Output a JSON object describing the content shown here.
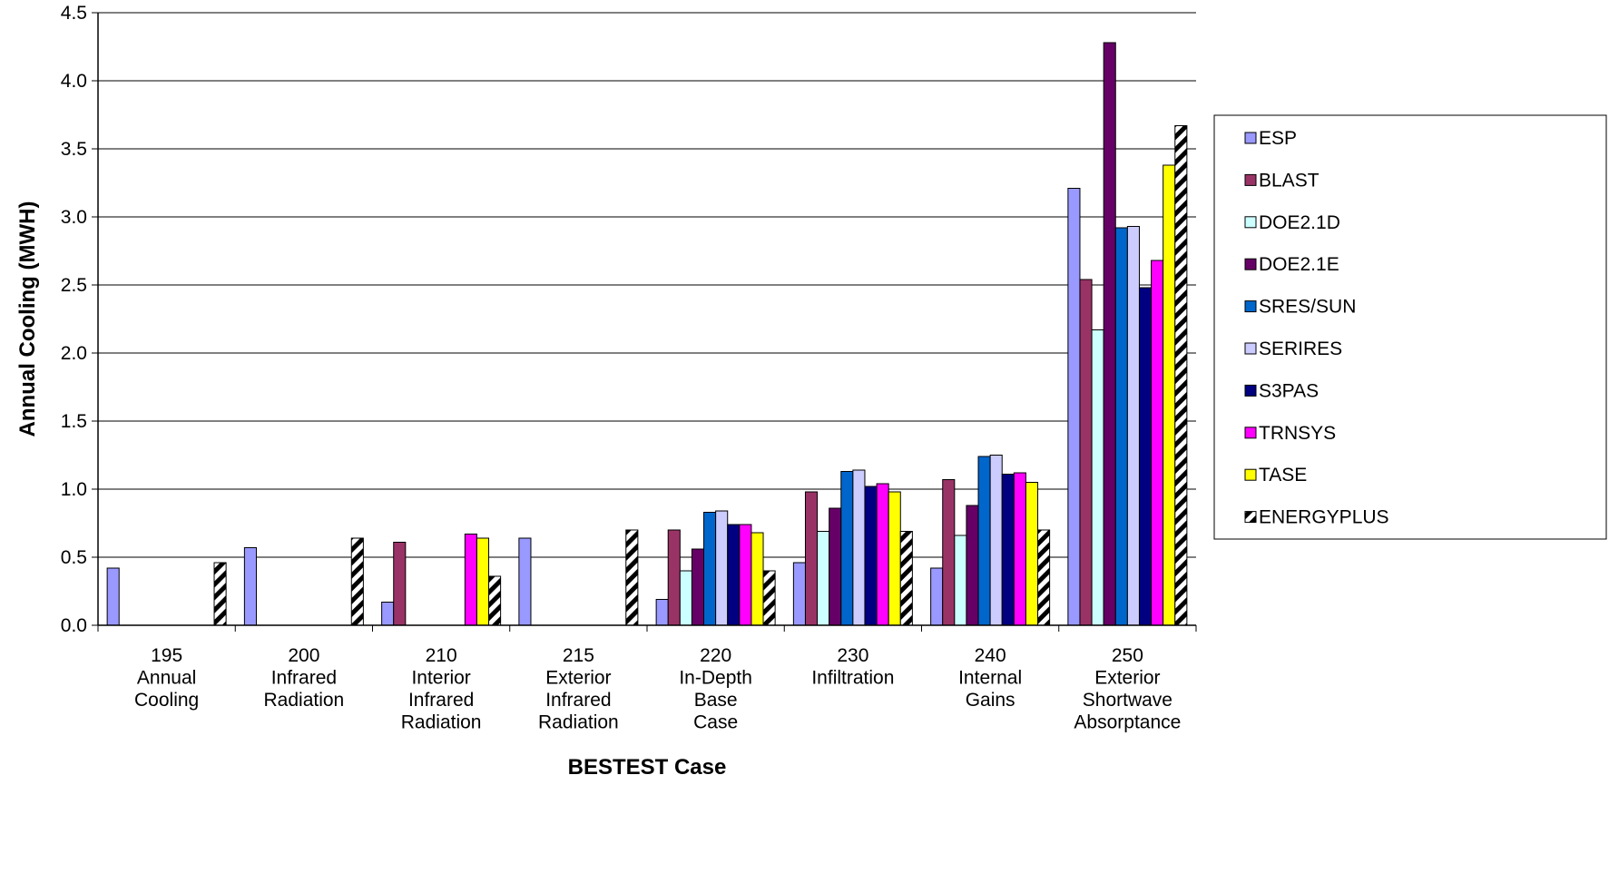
{
  "chart_data": {
    "type": "bar",
    "xlabel": "BESTEST Case",
    "ylabel": "Annual Cooling (MWH)",
    "ylim": [
      0,
      4.5
    ],
    "yticks": [
      "0.0",
      "0.5",
      "1.0",
      "1.5",
      "2.0",
      "2.5",
      "3.0",
      "3.5",
      "4.0",
      "4.5"
    ],
    "grid": "horizontal",
    "legend": "right",
    "categories": [
      [
        "195",
        "Annual",
        "Cooling"
      ],
      [
        "200",
        "Infrared",
        "Radiation"
      ],
      [
        "210",
        "Interior",
        "Infrared",
        "Radiation"
      ],
      [
        "215",
        "Exterior",
        "Infrared",
        "Radiation"
      ],
      [
        "220",
        "In-Depth",
        "Base",
        "Case"
      ],
      [
        "230",
        "Infiltration"
      ],
      [
        "240",
        "Internal",
        "Gains"
      ],
      [
        "250",
        "Exterior",
        "Shortwave",
        "Absorptance"
      ]
    ],
    "series": [
      {
        "name": "ESP",
        "color": "#9999ff",
        "values": [
          0.42,
          0.57,
          0.17,
          0.64,
          0.19,
          0.46,
          0.42,
          3.21
        ]
      },
      {
        "name": "BLAST",
        "color": "#993366",
        "values": [
          null,
          null,
          0.61,
          null,
          0.7,
          0.98,
          1.07,
          2.54
        ]
      },
      {
        "name": "DOE2.1D",
        "color": "#ccffff",
        "values": [
          null,
          null,
          null,
          null,
          0.4,
          0.69,
          0.66,
          2.17
        ]
      },
      {
        "name": "DOE2.1E",
        "color": "#660066",
        "values": [
          null,
          null,
          null,
          null,
          0.56,
          0.86,
          0.88,
          4.28
        ]
      },
      {
        "name": "SRES/SUN",
        "color": "#0066cc",
        "values": [
          null,
          null,
          null,
          null,
          0.83,
          1.13,
          1.24,
          2.92
        ]
      },
      {
        "name": "SERIRES",
        "color": "#ccccff",
        "values": [
          null,
          null,
          null,
          null,
          0.84,
          1.14,
          1.25,
          2.93
        ]
      },
      {
        "name": "S3PAS",
        "color": "#000080",
        "values": [
          null,
          null,
          null,
          null,
          0.74,
          1.02,
          1.11,
          2.48
        ]
      },
      {
        "name": "TRNSYS",
        "color": "#ff00ff",
        "values": [
          null,
          null,
          0.67,
          null,
          0.74,
          1.04,
          1.12,
          2.68
        ]
      },
      {
        "name": "TASE",
        "color": "#ffff00",
        "values": [
          null,
          null,
          0.64,
          null,
          0.68,
          0.98,
          1.05,
          3.38
        ]
      },
      {
        "name": "ENERGYPLUS",
        "color": "hatch",
        "values": [
          0.46,
          0.64,
          0.36,
          0.7,
          0.4,
          0.69,
          0.7,
          3.67
        ]
      }
    ]
  }
}
